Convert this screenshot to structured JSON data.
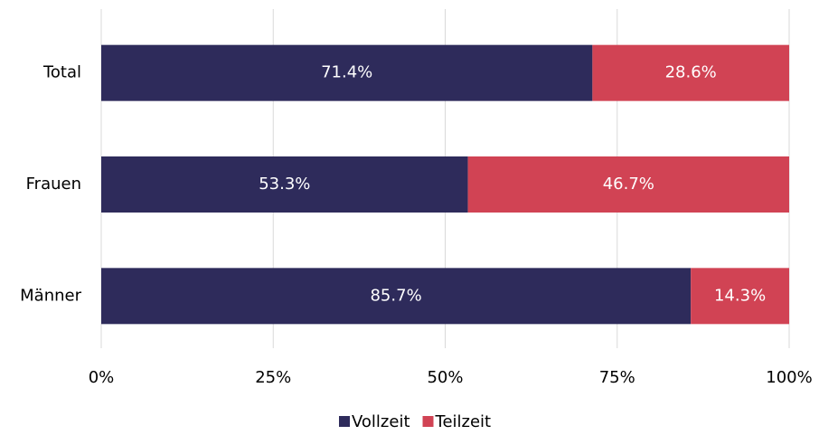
{
  "chart_data": {
    "type": "bar",
    "orientation": "horizontal",
    "stacked": true,
    "categories": [
      "Total",
      "Frauen",
      "Männer"
    ],
    "series": [
      {
        "name": "Vollzeit",
        "color": "#2e2b5b",
        "values": [
          71.4,
          53.3,
          85.7
        ],
        "value_labels": [
          "71.4%",
          "53.3%",
          "85.7%"
        ]
      },
      {
        "name": "Teilzeit",
        "color": "#d14354",
        "values": [
          28.6,
          46.7,
          14.3
        ],
        "value_labels": [
          "28.6%",
          "46.7%",
          "14.3%"
        ]
      }
    ],
    "xlim": [
      0,
      100
    ],
    "xticks": [
      {
        "value": 0,
        "label": "0%"
      },
      {
        "value": 25,
        "label": "25%"
      },
      {
        "value": 50,
        "label": "50%"
      },
      {
        "value": 75,
        "label": "75%"
      },
      {
        "value": 100,
        "label": "100%"
      }
    ],
    "grid": true,
    "legend": "bottom"
  }
}
